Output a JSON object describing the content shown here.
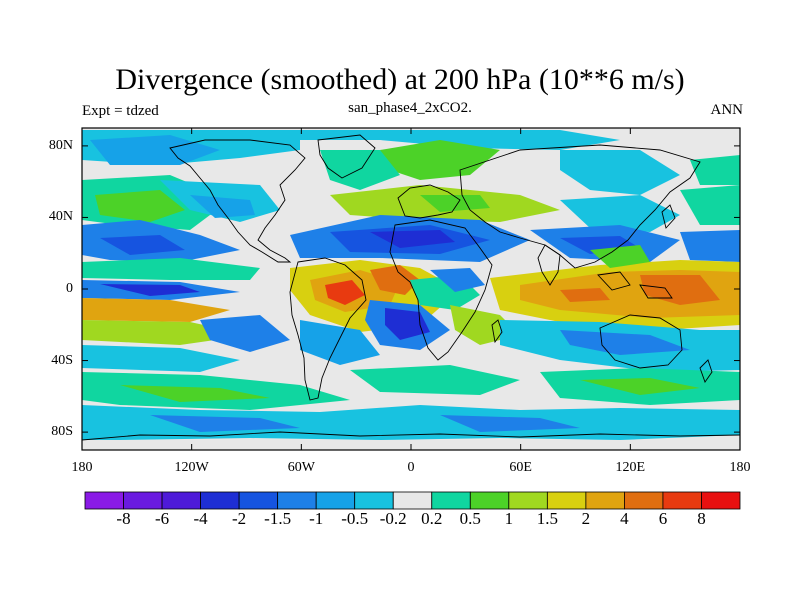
{
  "map": {
    "title": "Divergence (smoothed) at 200 hPa (10**6 m/s)",
    "left_string": "Expt = tdzed",
    "center_string": "san_phase4_2xCO2.",
    "right_string": "ANN",
    "lat_ticks": [
      "80N",
      "40N",
      "0",
      "40S",
      "80S"
    ],
    "lat_values": [
      80,
      40,
      0,
      -40,
      -80
    ],
    "lon_ticks": [
      "180",
      "120W",
      "60W",
      "0",
      "60E",
      "120E",
      "180"
    ],
    "lon_values": [
      -180,
      -120,
      -60,
      0,
      60,
      120,
      180
    ],
    "lat_range": [
      -90,
      90
    ],
    "lon_range": [
      -180,
      180
    ]
  },
  "colorbar": {
    "labels": [
      "-8",
      "-6",
      "-4",
      "-2",
      "-1.5",
      "-1",
      "-0.5",
      "-0.2",
      "0.2",
      "0.5",
      "1",
      "1.5",
      "2",
      "4",
      "6",
      "8"
    ],
    "colors": [
      "#8a1ae6",
      "#6a1ae0",
      "#4e1ad8",
      "#1e2ed4",
      "#1654e0",
      "#1e80e8",
      "#16a2e8",
      "#18c2e0",
      "#e8e8e8",
      "#10d6a0",
      "#4cd228",
      "#a0d820",
      "#d8d010",
      "#e0a410",
      "#e06e10",
      "#e83a10",
      "#e81010"
    ]
  }
}
